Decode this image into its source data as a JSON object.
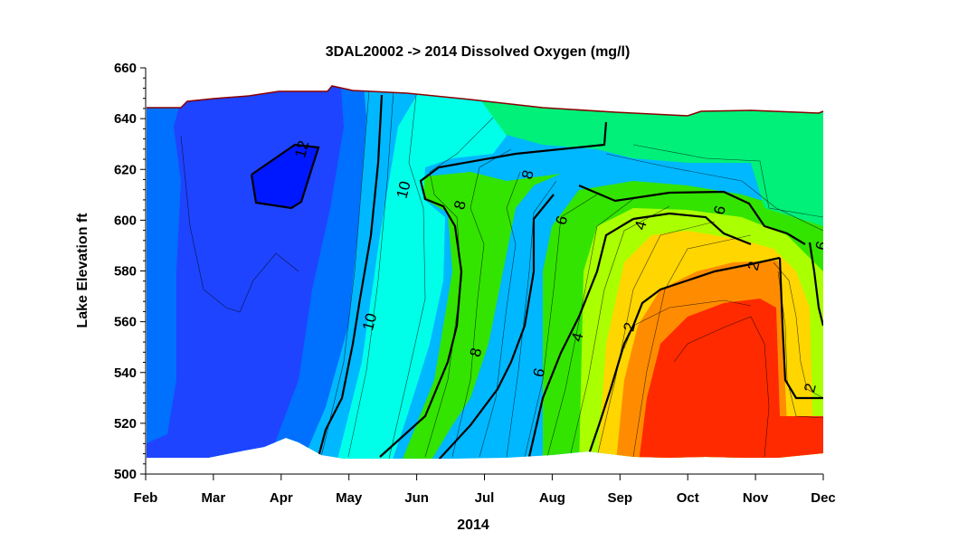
{
  "chart_data": {
    "type": "contour",
    "title": "3DAL20002  ->  2014 Dissolved Oxygen (mg/l)",
    "xlabel": "2014",
    "ylabel": "Lake  Elevation  ft",
    "x_ticks": [
      "Feb",
      "Mar",
      "Apr",
      "May",
      "Jun",
      "Jul",
      "Aug",
      "Sep",
      "Oct",
      "Nov",
      "Dec"
    ],
    "ylim": [
      500,
      660
    ],
    "y_ticks": [
      "500",
      "520",
      "540",
      "560",
      "580",
      "600",
      "620",
      "640",
      "660"
    ],
    "colormap": [
      "#ff2a00",
      "#ff8c00",
      "#ffd600",
      "#aaff00",
      "#33e400",
      "#00f07a",
      "#00ffe8",
      "#00b8ff",
      "#0070ff",
      "#1e44ff",
      "#0018ff"
    ],
    "labeled_contours_mgL": [
      2,
      4,
      6,
      8,
      10,
      12
    ],
    "contour_labels": [
      {
        "text": "12",
        "date": "Apr 10",
        "elev": 628
      },
      {
        "text": "10",
        "date": "May 25",
        "elev": 612
      },
      {
        "text": "10",
        "date": "May 10",
        "elev": 560
      },
      {
        "text": "8",
        "date": "Jul 20",
        "elev": 618
      },
      {
        "text": "8",
        "date": "Jun 20",
        "elev": 606
      },
      {
        "text": "8",
        "date": "Jun 27",
        "elev": 548
      },
      {
        "text": "6",
        "date": "Aug 5",
        "elev": 600
      },
      {
        "text": "6",
        "date": "Oct 15",
        "elev": 604
      },
      {
        "text": "6",
        "date": "Jul 25",
        "elev": 540
      },
      {
        "text": "6",
        "date": "Nov 30",
        "elev": 590
      },
      {
        "text": "4",
        "date": "Sep 10",
        "elev": 598
      },
      {
        "text": "4",
        "date": "Aug 12",
        "elev": 554
      },
      {
        "text": "2",
        "date": "Oct 30",
        "elev": 582
      },
      {
        "text": "2",
        "date": "Sep 5",
        "elev": 558
      },
      {
        "text": "2",
        "date": "Nov 25",
        "elev": 534
      }
    ],
    "surface_elevation": [
      {
        "date": "Feb 1",
        "elev": 644
      },
      {
        "date": "Feb 20",
        "elev": 644
      },
      {
        "date": "Mar 15",
        "elev": 647
      },
      {
        "date": "Apr 15",
        "elev": 650
      },
      {
        "date": "May 1",
        "elev": 652
      },
      {
        "date": "May 15",
        "elev": 650
      },
      {
        "date": "Jun 15",
        "elev": 649
      },
      {
        "date": "Jul 15",
        "elev": 646
      },
      {
        "date": "Aug 15",
        "elev": 644
      },
      {
        "date": "Sep 15",
        "elev": 642
      },
      {
        "date": "Oct 15",
        "elev": 641
      },
      {
        "date": "Nov 1",
        "elev": 643
      },
      {
        "date": "Nov 15",
        "elev": 641
      },
      {
        "date": "Dec 1",
        "elev": 642
      }
    ],
    "bottom_elevation": [
      {
        "date": "Feb 1",
        "elev": 506
      },
      {
        "date": "Mar 15",
        "elev": 507
      },
      {
        "date": "Apr 20",
        "elev": 514
      },
      {
        "date": "May 15",
        "elev": 506
      },
      {
        "date": "Jul 15",
        "elev": 506
      },
      {
        "date": "Sep 1",
        "elev": 508
      },
      {
        "date": "Oct 1",
        "elev": 506
      },
      {
        "date": "Nov 15",
        "elev": 506
      },
      {
        "date": "Dec 1",
        "elev": 508
      }
    ]
  }
}
